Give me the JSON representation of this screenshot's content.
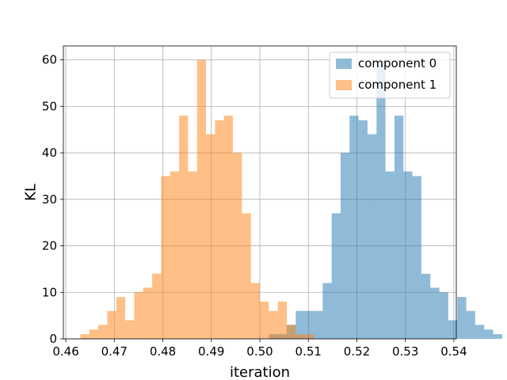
{
  "chart_data": {
    "type": "histogram",
    "title": "",
    "xlabel": "iteration",
    "ylabel": "KL",
    "xlim": [
      0.4595,
      0.5405
    ],
    "ylim": [
      0,
      63
    ],
    "x_ticks": [
      0.46,
      0.47,
      0.48,
      0.49,
      0.5,
      0.51,
      0.52,
      0.53,
      0.54
    ],
    "x_tick_labels": [
      "0.46",
      "0.47",
      "0.48",
      "0.49",
      "0.50",
      "0.51",
      "0.52",
      "0.53",
      "0.54"
    ],
    "y_ticks": [
      0,
      10,
      20,
      30,
      40,
      50,
      60
    ],
    "y_tick_labels": [
      "0",
      "10",
      "20",
      "30",
      "40",
      "50",
      "60"
    ],
    "grid": true,
    "legend_position": "top-right",
    "series": [
      {
        "name": "component 0",
        "color": "#1f77b4",
        "alpha": 0.5,
        "bin_start": 0.463,
        "bin_width": 0.00185,
        "counts": [
          0,
          0,
          0,
          0,
          0,
          0,
          0,
          0,
          0,
          0,
          0,
          0,
          0,
          0,
          0,
          0,
          0,
          0,
          0,
          0,
          0,
          1,
          1,
          3,
          6,
          6,
          6,
          12,
          27,
          40,
          48,
          47,
          44,
          60,
          36,
          48,
          36,
          35,
          14,
          11,
          10,
          4,
          9,
          6,
          3,
          2,
          1
        ]
      },
      {
        "name": "component 1",
        "color": "#ff7f0e",
        "alpha": 0.5,
        "bin_start": 0.463,
        "bin_width": 0.00185,
        "counts": [
          1,
          2,
          3,
          6,
          9,
          4,
          10,
          11,
          14,
          35,
          36,
          48,
          36,
          60,
          44,
          47,
          48,
          40,
          27,
          12,
          8,
          6,
          8,
          3,
          1,
          1
        ]
      }
    ]
  }
}
